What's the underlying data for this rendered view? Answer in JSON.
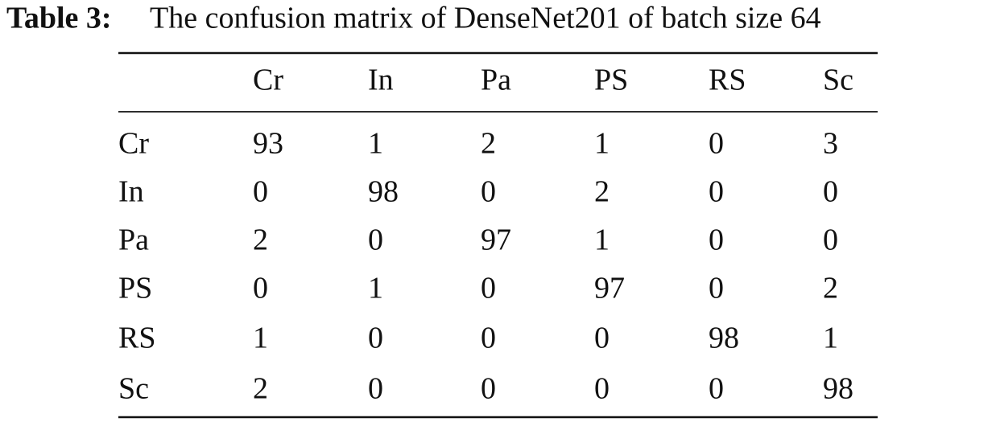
{
  "caption": {
    "label": "Table 3:",
    "text": "The confusion matrix of DenseNet201 of batch size 64"
  },
  "table": {
    "columns": [
      "Cr",
      "In",
      "Pa",
      "PS",
      "RS",
      "Sc"
    ],
    "rows": [
      [
        "Cr",
        93,
        1,
        2,
        1,
        0,
        3
      ],
      [
        "In",
        0,
        98,
        0,
        2,
        0,
        0
      ],
      [
        "Pa",
        2,
        0,
        97,
        1,
        0,
        0
      ],
      [
        "PS",
        0,
        1,
        0,
        97,
        0,
        2
      ],
      [
        "RS",
        1,
        0,
        0,
        0,
        98,
        1
      ],
      [
        "Sc",
        2,
        0,
        0,
        0,
        0,
        98
      ]
    ]
  }
}
